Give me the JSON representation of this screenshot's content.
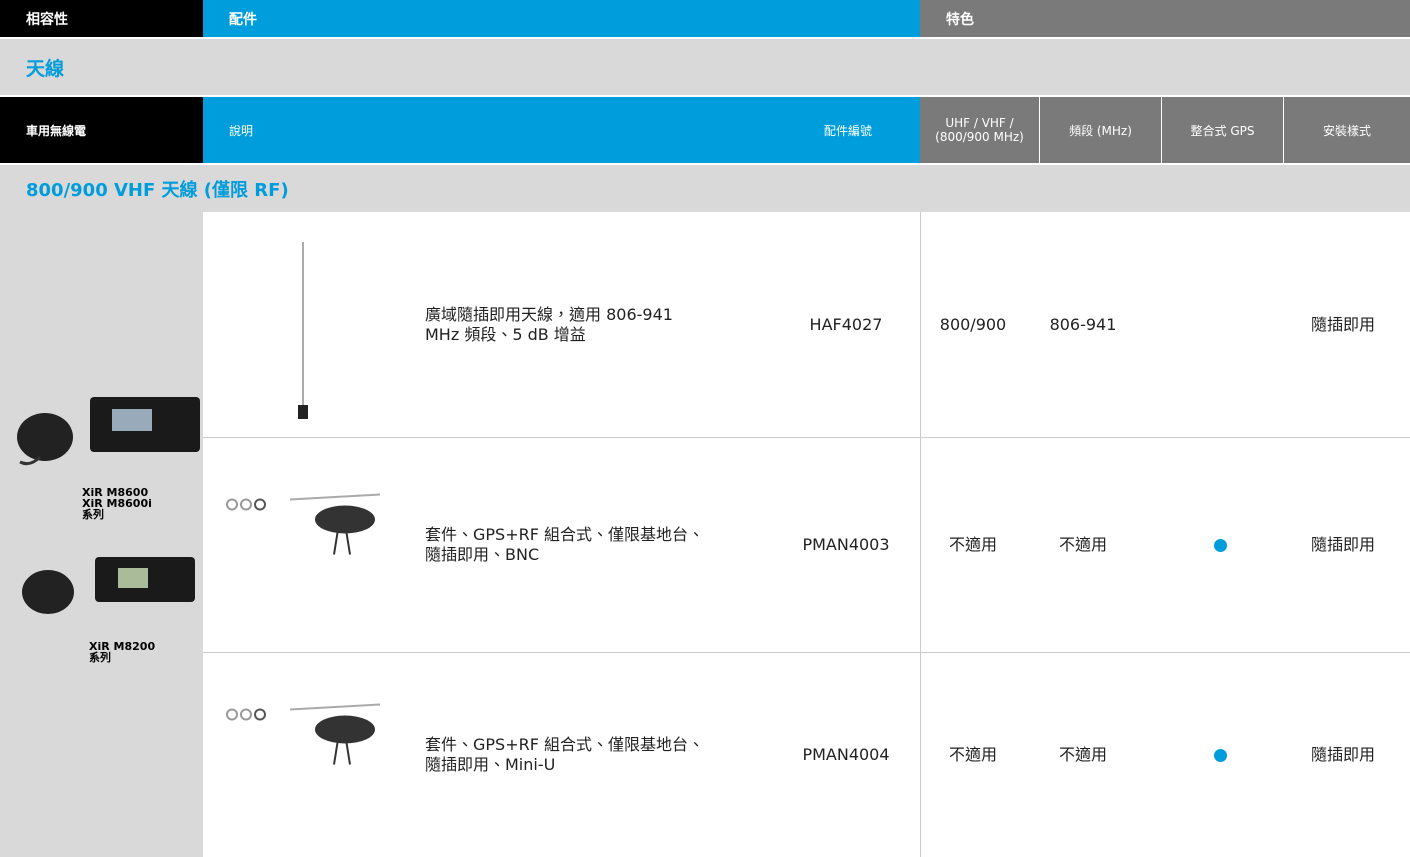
{
  "header": {
    "compatibility": "相容性",
    "accessories": "配件",
    "features": "特色"
  },
  "category": "天線",
  "columns": [
    "車用無線電",
    "說明",
    "配件編號",
    "UHF / VHF /\n(800/900 MHz)",
    "頻段 (MHz)",
    "整合式 GPS",
    "安裝樣式"
  ],
  "section": "800/900 VHF 天線 (僅限 RF)",
  "radios": [
    "XiR M8600\nXiR M8600i\n系列",
    "XiR M8200\n系列"
  ],
  "rows": [
    {
      "description": "廣域隨插即用天線，適用 806-941\nMHz 頻段、5 dB 增益",
      "part": "HAF4027",
      "band": "800/900",
      "freq": "806-941",
      "gps": false,
      "mount": "隨插即用"
    },
    {
      "description": "套件、GPS+RF 組合式、僅限基地台、\n隨插即用、BNC",
      "part": "PMAN4003",
      "band": "不適用",
      "freq": "不適用",
      "gps": true,
      "mount": "隨插即用"
    },
    {
      "description": "套件、GPS+RF 組合式、僅限基地台、\n隨插即用、Mini-U",
      "part": "PMAN4004",
      "band": "不適用",
      "freq": "不適用",
      "gps": true,
      "mount": "隨插即用"
    }
  ]
}
